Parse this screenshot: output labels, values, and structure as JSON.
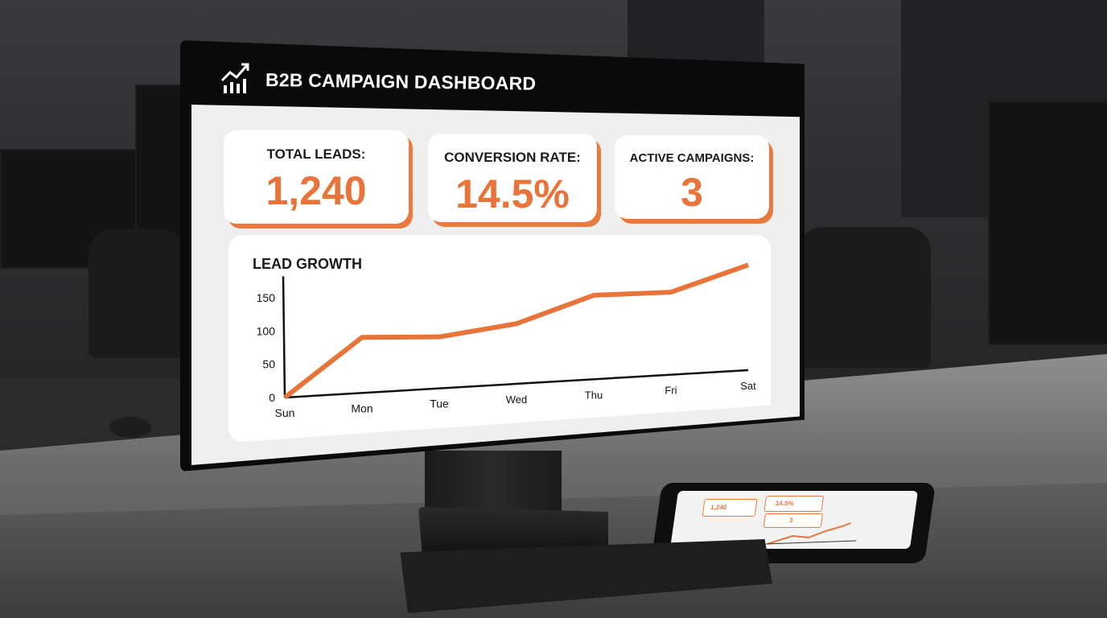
{
  "dashboard": {
    "title": "B2B CAMPAIGN DASHBOARD",
    "header_icon": "chart-growth-icon",
    "cards": [
      {
        "label": "TOTAL LEADS:",
        "value": "1,240"
      },
      {
        "label": "CONVERSION RATE:",
        "value": "14.5%"
      },
      {
        "label": "ACTIVE CAMPAIGNS:",
        "value": "3"
      }
    ],
    "accent_color": "#e8743a"
  },
  "chart_data": {
    "type": "line",
    "title": "LEAD GROWTH",
    "categories": [
      "Sun",
      "Mon",
      "Tue",
      "Wed",
      "Thu",
      "Fri",
      "Sat"
    ],
    "series": [
      {
        "values": [
          0,
          85,
          80,
          95,
          135,
          135,
          175
        ]
      }
    ],
    "y_ticks": [
      "0",
      "50",
      "100",
      "150"
    ],
    "ylim": [
      0,
      175
    ],
    "grid": false,
    "color": "#e8743a"
  }
}
